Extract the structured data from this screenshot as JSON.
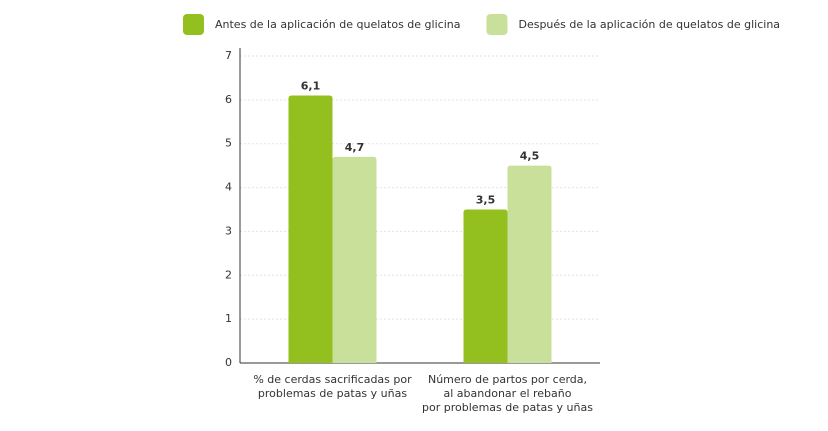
{
  "chart_data": {
    "type": "bar",
    "categories": [
      "% de cerdas sacrificadas por\nproblemas de patas y uñas",
      "Número de partos por cerda,\nal abandonar el rebaño\npor problemas de patas y uñas"
    ],
    "series": [
      {
        "name": "Antes de la aplicación de quelatos de glicina",
        "color": "#93c01f",
        "values": [
          6.1,
          3.5
        ],
        "value_labels": [
          "6,1",
          "3,5"
        ]
      },
      {
        "name": "Después de la aplicación de quelatos de glicina",
        "color": "#c9e09a",
        "values": [
          4.7,
          4.5
        ],
        "value_labels": [
          "4,7",
          "4,5"
        ]
      }
    ],
    "ylim": [
      0,
      7
    ],
    "yticks": [
      0,
      1,
      2,
      3,
      4,
      5,
      6,
      7
    ],
    "grid": true,
    "legend": "top"
  }
}
